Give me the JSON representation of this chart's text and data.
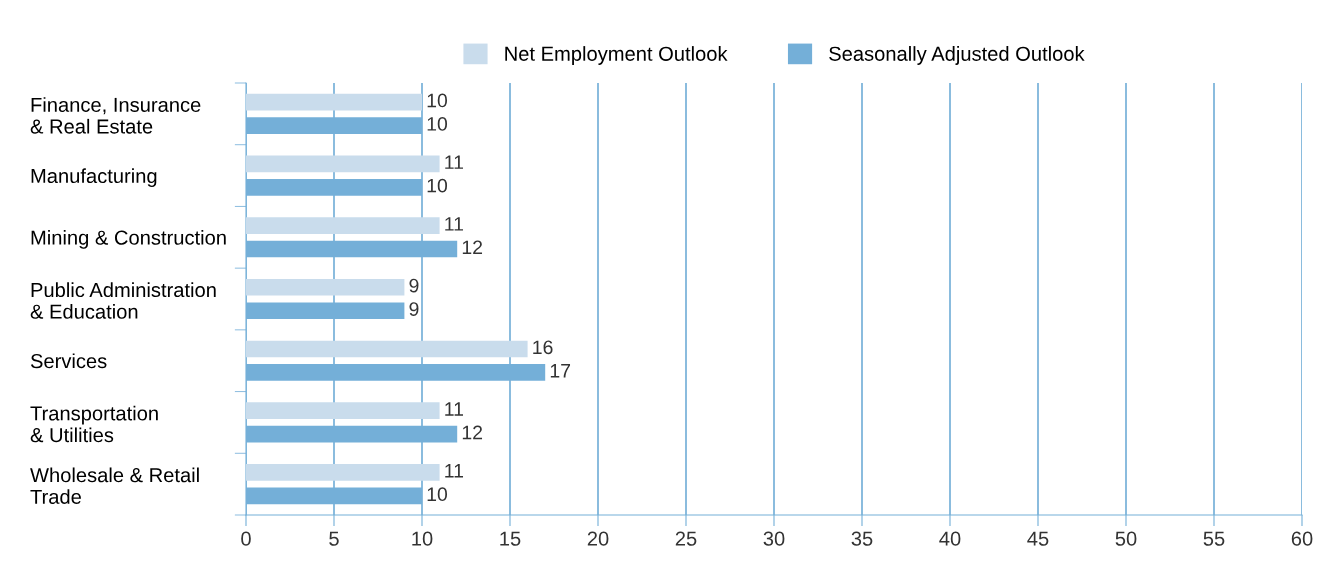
{
  "chart_data": {
    "type": "bar",
    "orientation": "horizontal",
    "categories": [
      "Finance, Insurance\n& Real Estate",
      "Manufacturing",
      "Mining & Construction",
      "Public Administration\n& Education",
      "Services",
      "Transportation\n& Utilities",
      "Wholesale & Retail\nTrade"
    ],
    "series": [
      {
        "name": "Net Employment Outlook",
        "color": "#c9dcec",
        "values": [
          10,
          11,
          11,
          9,
          16,
          11,
          11
        ]
      },
      {
        "name": "Seasonally Adjusted Outlook",
        "color": "#74afd8",
        "values": [
          10,
          10,
          12,
          9,
          17,
          12,
          10
        ]
      }
    ],
    "xlim": [
      0,
      60
    ],
    "xticks": [
      0,
      5,
      10,
      15,
      20,
      25,
      30,
      35,
      40,
      45,
      50,
      55,
      60
    ],
    "grid": "x",
    "legend": "top",
    "data_labels": true
  }
}
